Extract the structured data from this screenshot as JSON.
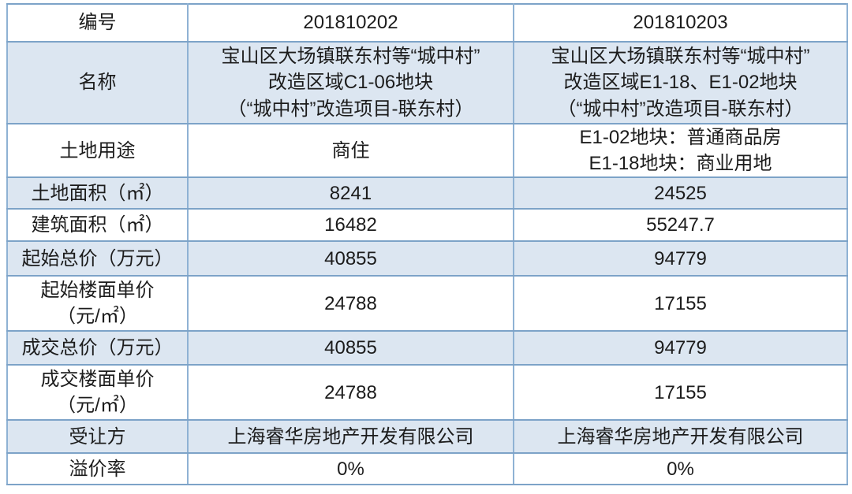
{
  "colors": {
    "row_alt_background": "#dce6f1",
    "row_plain_background": "#ffffff",
    "grid_border": "#7da3c8",
    "text": "#1c1c1c"
  },
  "table": {
    "description": "land-parcel-transaction-table",
    "rows": [
      {
        "cells": [
          "编号",
          "201810202",
          "201810203"
        ]
      },
      {
        "cells": [
          "名称",
          [
            "宝山区大场镇联东村等“城中村”",
            "改造区域C1-06地块",
            "（“城中村”改造项目-联东村）"
          ],
          [
            "宝山区大场镇联东村等“城中村”",
            "改造区域E1-18、E1-02地块",
            "（“城中村”改造项目-联东村）"
          ]
        ]
      },
      {
        "cells": [
          "土地用途",
          "商住",
          [
            "E1-02地块：普通商品房",
            "E1-18地块：商业用地"
          ]
        ]
      },
      {
        "cells": [
          "土地面积（㎡）",
          "8241",
          "24525"
        ]
      },
      {
        "cells": [
          "建筑面积（㎡）",
          "16482",
          "55247.7"
        ]
      },
      {
        "cells": [
          "起始总价（万元）",
          "40855",
          "94779"
        ]
      },
      {
        "cells": [
          [
            "起始楼面单价",
            "（元/㎡）"
          ],
          "24788",
          "17155"
        ]
      },
      {
        "cells": [
          "成交总价（万元）",
          "40855",
          "94779"
        ]
      },
      {
        "cells": [
          [
            "成交楼面单价",
            "（元/㎡）"
          ],
          "24788",
          "17155"
        ]
      },
      {
        "cells": [
          "受让方",
          "上海睿华房地产开发有限公司",
          "上海睿华房地产开发有限公司"
        ]
      },
      {
        "cells": [
          "溢价率",
          "0%",
          "0%"
        ]
      }
    ]
  }
}
